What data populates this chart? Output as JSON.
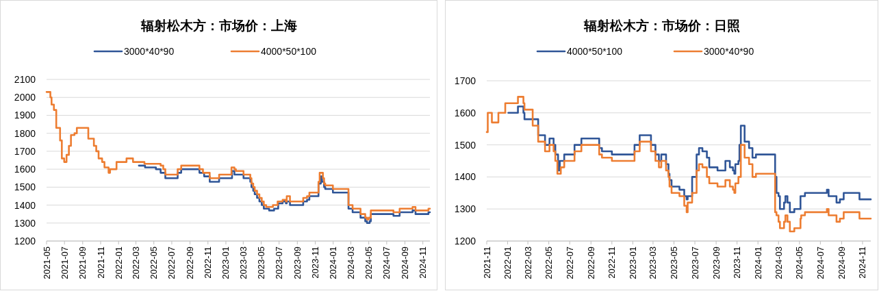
{
  "chart_data": [
    {
      "type": "step",
      "title": "辐射松木方：市场价：上海",
      "legend": "top",
      "grid": "y",
      "line_style": "solid",
      "marker": "none",
      "xlim": [
        "2021-05-01",
        "2024-11-25"
      ],
      "ylim": [
        1200,
        2100
      ],
      "yticks": [
        1200,
        1300,
        1400,
        1500,
        1600,
        1700,
        1800,
        1900,
        2000,
        2100
      ],
      "xticks": [
        "2021-05",
        "2021-07",
        "2021-09",
        "2021-11",
        "2022-01",
        "2022-03",
        "2022-05",
        "2022-07",
        "2022-09",
        "2022-11",
        "2023-01",
        "2023-03",
        "2023-05",
        "2023-07",
        "2023-09",
        "2023-11",
        "2024-01",
        "2024-03",
        "2024-05",
        "2024-07",
        "2024-09",
        "2024-11"
      ],
      "series": [
        {
          "name": "3000*40*90",
          "color": "#2f5597",
          "x": [
            "2022-03-11",
            "2022-04-01",
            "2022-05-08",
            "2022-05-24",
            "2022-06-09",
            "2022-07-21",
            "2022-08-02",
            "2022-10-03",
            "2022-10-19",
            "2022-11-07",
            "2022-12-09",
            "2023-01-22",
            "2023-01-30",
            "2023-03-02",
            "2023-03-25",
            "2023-03-29",
            "2023-04-04",
            "2023-04-09",
            "2023-04-17",
            "2023-04-25",
            "2023-05-03",
            "2023-05-10",
            "2023-05-28",
            "2023-06-14",
            "2023-06-28",
            "2023-07-13",
            "2023-07-24",
            "2023-07-27",
            "2023-08-07",
            "2023-09-21",
            "2023-10-04",
            "2023-10-12",
            "2023-11-12",
            "2023-11-20",
            "2023-11-24",
            "2023-12-01",
            "2023-12-05",
            "2023-12-31",
            "2024-02-22",
            "2024-03-07",
            "2024-04-03",
            "2024-04-19",
            "2024-04-25",
            "2024-05-04",
            "2024-05-08",
            "2024-07-24",
            "2024-08-14",
            "2024-09-27",
            "2024-10-07",
            "2024-11-20",
            "2024-11-25"
          ],
          "values": [
            1620,
            1610,
            1600,
            1580,
            1550,
            1580,
            1600,
            1580,
            1560,
            1530,
            1550,
            1590,
            1570,
            1550,
            1530,
            1500,
            1480,
            1460,
            1440,
            1420,
            1400,
            1380,
            1370,
            1380,
            1410,
            1420,
            1410,
            1420,
            1400,
            1420,
            1430,
            1450,
            1520,
            1560,
            1530,
            1500,
            1490,
            1470,
            1380,
            1360,
            1330,
            1310,
            1300,
            1310,
            1350,
            1340,
            1360,
            1370,
            1350,
            1360,
            1360
          ]
        },
        {
          "name": "4000*50*100",
          "color": "#ed7d31",
          "x": [
            "2021-05-01",
            "2021-05-14",
            "2021-05-18",
            "2021-05-26",
            "2021-06-03",
            "2021-06-16",
            "2021-06-22",
            "2021-06-30",
            "2021-07-08",
            "2021-07-16",
            "2021-07-23",
            "2021-08-04",
            "2021-08-12",
            "2021-09-20",
            "2021-10-09",
            "2021-10-17",
            "2021-10-25",
            "2021-11-06",
            "2021-11-14",
            "2021-11-28",
            "2021-12-03",
            "2021-12-25",
            "2022-01-28",
            "2022-02-19",
            "2022-03-30",
            "2022-05-24",
            "2022-06-02",
            "2022-06-09",
            "2022-07-21",
            "2022-08-02",
            "2022-10-03",
            "2022-10-15",
            "2022-11-07",
            "2022-12-09",
            "2023-01-20",
            "2023-01-30",
            "2023-02-04",
            "2023-03-02",
            "2023-03-25",
            "2023-03-29",
            "2023-04-04",
            "2023-04-09",
            "2023-04-17",
            "2023-04-25",
            "2023-05-03",
            "2023-05-10",
            "2023-05-18",
            "2023-06-10",
            "2023-06-26",
            "2023-07-13",
            "2023-07-24",
            "2023-07-27",
            "2023-08-07",
            "2023-09-21",
            "2023-10-04",
            "2023-10-12",
            "2023-11-12",
            "2023-11-16",
            "2023-11-27",
            "2023-12-01",
            "2023-12-05",
            "2023-12-31",
            "2024-02-22",
            "2024-03-07",
            "2024-04-03",
            "2024-04-19",
            "2024-04-25",
            "2024-05-01",
            "2024-05-08",
            "2024-07-24",
            "2024-08-14",
            "2024-09-27",
            "2024-10-07",
            "2024-11-20",
            "2024-11-25"
          ],
          "values": [
            2030,
            2000,
            1960,
            1930,
            1830,
            1760,
            1660,
            1640,
            1680,
            1730,
            1790,
            1800,
            1830,
            1770,
            1730,
            1700,
            1660,
            1640,
            1610,
            1580,
            1600,
            1640,
            1660,
            1640,
            1630,
            1620,
            1600,
            1570,
            1600,
            1620,
            1600,
            1580,
            1550,
            1570,
            1610,
            1600,
            1590,
            1570,
            1550,
            1520,
            1500,
            1480,
            1460,
            1440,
            1420,
            1400,
            1390,
            1400,
            1420,
            1430,
            1420,
            1450,
            1420,
            1440,
            1450,
            1470,
            1530,
            1580,
            1550,
            1520,
            1510,
            1490,
            1400,
            1380,
            1350,
            1330,
            1320,
            1330,
            1370,
            1360,
            1380,
            1390,
            1370,
            1380,
            1380
          ]
        }
      ]
    },
    {
      "type": "step",
      "title": "辐射松木方：市场价：日照",
      "legend": "top",
      "grid": "y",
      "line_style": "solid",
      "marker": "none",
      "xlim": [
        "2021-11-01",
        "2024-11-25"
      ],
      "ylim": [
        1200,
        1700
      ],
      "yticks": [
        1200,
        1300,
        1400,
        1500,
        1600,
        1700
      ],
      "xticks": [
        "2021-11",
        "2022-01",
        "2022-03",
        "2022-05",
        "2022-07",
        "2022-09",
        "2022-11",
        "2023-01",
        "2023-03",
        "2023-05",
        "2023-07",
        "2023-09",
        "2023-11",
        "2024-01",
        "2024-03",
        "2024-05",
        "2024-07",
        "2024-09",
        "2024-11"
      ],
      "series": [
        {
          "name": "4000*50*100",
          "color": "#2f5597",
          "x": [
            "2022-01-03",
            "2022-01-31",
            "2022-02-16",
            "2022-02-19",
            "2022-03-31",
            "2022-04-20",
            "2022-05-03",
            "2022-05-15",
            "2022-05-20",
            "2022-05-28",
            "2022-06-02",
            "2022-06-15",
            "2022-07-15",
            "2022-08-04",
            "2022-09-25",
            "2022-10-03",
            "2022-11-01",
            "2023-01-06",
            "2023-01-21",
            "2023-02-23",
            "2023-03-08",
            "2023-03-18",
            "2023-03-25",
            "2023-04-08",
            "2023-04-15",
            "2023-04-18",
            "2023-04-24",
            "2023-05-17",
            "2023-05-31",
            "2023-06-07",
            "2023-06-10",
            "2023-06-23",
            "2023-07-06",
            "2023-07-13",
            "2023-07-23",
            "2023-08-05",
            "2023-08-12",
            "2023-09-05",
            "2023-09-28",
            "2023-10-11",
            "2023-10-20",
            "2023-10-24",
            "2023-10-27",
            "2023-11-05",
            "2023-11-08",
            "2023-11-12",
            "2023-11-23",
            "2023-12-06",
            "2023-12-16",
            "2023-12-26",
            "2024-02-20",
            "2024-02-24",
            "2024-03-01",
            "2024-03-05",
            "2024-03-17",
            "2024-03-21",
            "2024-03-27",
            "2024-04-03",
            "2024-04-16",
            "2024-05-04",
            "2024-05-17",
            "2024-07-20",
            "2024-07-25",
            "2024-08-17",
            "2024-08-27",
            "2024-09-07",
            "2024-10-23",
            "2024-11-25"
          ],
          "values": [
            1600,
            1620,
            1600,
            1580,
            1530,
            1500,
            1520,
            1500,
            1470,
            1420,
            1450,
            1470,
            1500,
            1520,
            1490,
            1480,
            1470,
            1500,
            1530,
            1500,
            1470,
            1450,
            1470,
            1440,
            1410,
            1390,
            1370,
            1360,
            1340,
            1330,
            1340,
            1400,
            1470,
            1490,
            1480,
            1460,
            1430,
            1420,
            1450,
            1430,
            1420,
            1410,
            1440,
            1450,
            1500,
            1560,
            1510,
            1490,
            1460,
            1470,
            1400,
            1350,
            1340,
            1300,
            1320,
            1340,
            1320,
            1290,
            1300,
            1340,
            1350,
            1360,
            1340,
            1320,
            1330,
            1350,
            1330,
            1330
          ]
        },
        {
          "name": "3000*40*90",
          "color": "#ed7d31",
          "x": [
            "2021-11-01",
            "2021-11-04",
            "2021-11-16",
            "2021-12-05",
            "2021-12-25",
            "2022-01-31",
            "2022-02-16",
            "2022-02-19",
            "2022-03-15",
            "2022-03-31",
            "2022-04-20",
            "2022-05-03",
            "2022-05-15",
            "2022-05-20",
            "2022-05-26",
            "2022-06-05",
            "2022-06-15",
            "2022-07-15",
            "2022-08-04",
            "2022-09-25",
            "2022-10-03",
            "2022-11-01",
            "2023-01-06",
            "2023-01-21",
            "2023-02-23",
            "2023-03-08",
            "2023-03-18",
            "2023-03-25",
            "2023-04-08",
            "2023-04-15",
            "2023-04-18",
            "2023-04-24",
            "2023-05-17",
            "2023-05-31",
            "2023-06-07",
            "2023-06-10",
            "2023-06-23",
            "2023-07-06",
            "2023-07-13",
            "2023-07-23",
            "2023-08-05",
            "2023-08-12",
            "2023-09-05",
            "2023-09-28",
            "2023-10-11",
            "2023-10-20",
            "2023-10-24",
            "2023-10-27",
            "2023-11-05",
            "2023-11-12",
            "2023-11-23",
            "2023-12-06",
            "2023-12-16",
            "2023-12-26",
            "2024-02-20",
            "2024-02-24",
            "2024-03-01",
            "2024-03-05",
            "2024-03-17",
            "2024-03-21",
            "2024-03-27",
            "2024-04-03",
            "2024-04-16",
            "2024-05-04",
            "2024-05-06",
            "2024-05-17",
            "2024-07-20",
            "2024-07-25",
            "2024-08-17",
            "2024-08-27",
            "2024-09-07",
            "2024-10-23",
            "2024-11-25"
          ],
          "values": [
            1540,
            1600,
            1570,
            1600,
            1630,
            1650,
            1630,
            1610,
            1560,
            1510,
            1480,
            1500,
            1480,
            1450,
            1410,
            1430,
            1450,
            1480,
            1500,
            1470,
            1460,
            1450,
            1480,
            1510,
            1480,
            1450,
            1430,
            1450,
            1420,
            1400,
            1370,
            1350,
            1340,
            1310,
            1290,
            1320,
            1350,
            1420,
            1440,
            1430,
            1400,
            1380,
            1370,
            1390,
            1370,
            1360,
            1350,
            1380,
            1400,
            1500,
            1460,
            1440,
            1400,
            1410,
            1290,
            1280,
            1260,
            1240,
            1260,
            1280,
            1260,
            1230,
            1240,
            1270,
            1280,
            1290,
            1300,
            1280,
            1260,
            1270,
            1290,
            1270,
            1270
          ]
        }
      ]
    }
  ]
}
